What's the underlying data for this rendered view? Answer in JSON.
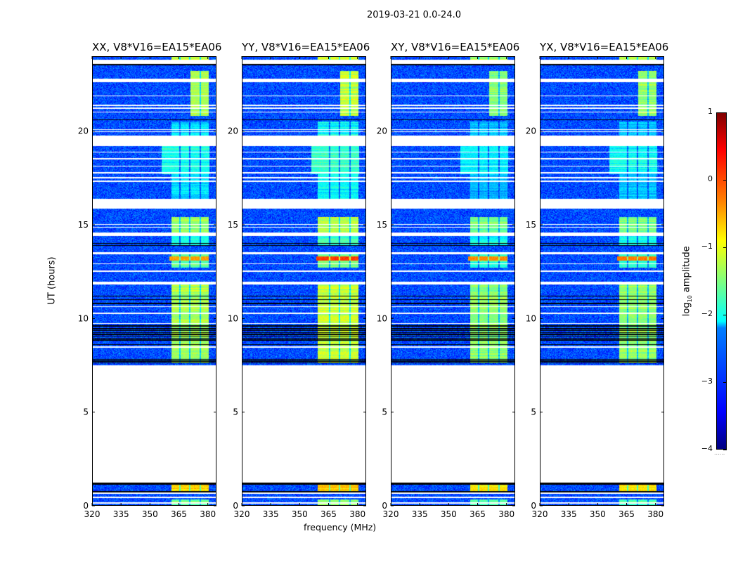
{
  "figure": {
    "suptitle": "2019-03-21 0.0-24.0",
    "xlabel": "frequency (MHz)",
    "ylabel": "UT (hours)",
    "colorbar_label_main": "log",
    "colorbar_label_sub": "10",
    "colorbar_label_rest": " amplitude",
    "colorbar_footer": "......"
  },
  "chart_data": {
    "type": "heatmap",
    "title": "2019-03-21 0.0-24.0",
    "xlabel": "frequency (MHz)",
    "ylabel": "UT (hours)",
    "xlim": [
      320,
      384.5
    ],
    "ylim": [
      0,
      24
    ],
    "xticks": [
      320,
      335,
      350,
      365,
      380
    ],
    "xtick_labels": [
      "320",
      "335",
      "350",
      "365",
      "380"
    ],
    "yticks": [
      0,
      5,
      10,
      15,
      20
    ],
    "ytick_labels": [
      "0",
      "5",
      "10",
      "15",
      "20"
    ],
    "colorbar": {
      "label": "log10 amplitude",
      "range": [
        -4,
        1
      ],
      "ticks": [
        1,
        0,
        -1,
        -2,
        -3,
        -4
      ],
      "tick_labels": [
        "1",
        "0",
        "−1",
        "−2",
        "−3",
        "−4"
      ],
      "colormap": "jet"
    },
    "panels": [
      {
        "title": "XX, V8*V16=EA15*EA06",
        "band_start_mhz": 361,
        "level_offset": 0.0,
        "red_row_level": -0.4
      },
      {
        "title": "YY, V8*V16=EA15*EA06",
        "band_start_mhz": 359.5,
        "level_offset": 0.15,
        "red_row_level": 0.1
      },
      {
        "title": "XY, V8*V16=EA15*EA06",
        "band_start_mhz": 361,
        "level_offset": -0.15,
        "red_row_level": -0.3
      },
      {
        "title": "YX, V8*V16=EA15*EA06",
        "band_start_mhz": 361,
        "level_offset": -0.1,
        "red_row_level": -0.2
      }
    ],
    "background_level": -3.0,
    "flagged_gaps_ut": [
      [
        1.25,
        7.5
      ],
      [
        15.85,
        16.4
      ],
      [
        19.2,
        19.75
      ],
      [
        22.6,
        22.8
      ],
      [
        23.6,
        23.82
      ],
      [
        14.4,
        14.6
      ],
      [
        13.43,
        13.55
      ],
      [
        0.12,
        0.18
      ],
      [
        0.42,
        0.5
      ],
      [
        0.62,
        0.7
      ],
      [
        11.82,
        11.98
      ],
      [
        12.5,
        12.58
      ],
      [
        12.9,
        12.95
      ],
      [
        17.3,
        17.36
      ],
      [
        17.48,
        17.55
      ],
      [
        17.75,
        17.82
      ],
      [
        18.1,
        18.16
      ],
      [
        18.5,
        18.56
      ],
      [
        18.85,
        18.9
      ],
      [
        21.0,
        21.05
      ],
      [
        21.2,
        21.25
      ],
      [
        21.35,
        21.4
      ],
      [
        21.85,
        21.9
      ],
      [
        20.05,
        20.1
      ],
      [
        19.95,
        19.99
      ],
      [
        14.85,
        14.9
      ],
      [
        15.0,
        15.04
      ],
      [
        8.45,
        8.5
      ],
      [
        10.6,
        10.65
      ],
      [
        10.25,
        10.3
      ],
      [
        9.7,
        9.75
      ]
    ],
    "flagged_lines_ut": [
      7.62,
      7.72,
      7.82,
      8.6,
      8.85,
      8.95,
      9.05,
      9.15,
      9.25,
      9.35,
      9.45,
      9.6,
      10.8,
      11.0,
      11.2,
      13.9,
      14.0,
      20.6,
      23.55,
      1.15,
      1.2,
      1.28,
      0.75
    ],
    "channel_dips_mhz": [
      365.6,
      370.8,
      376.0
    ],
    "rfi_bands": [
      {
        "ut": [
          7.6,
          11.8
        ],
        "mhz": [
          0,
          380.5
        ],
        "level": -1.3
      },
      {
        "ut": [
          12.7,
          13.45
        ],
        "mhz": [
          0,
          380.5
        ],
        "level": -1.7
      },
      {
        "ut": [
          13.9,
          14.4
        ],
        "mhz": [
          0,
          380.5
        ],
        "level": -1.9
      },
      {
        "ut": [
          14.6,
          15.4
        ],
        "mhz": [
          0,
          380.5
        ],
        "level": -1.4
      },
      {
        "ut": [
          0.0,
          0.35
        ],
        "mhz": [
          0,
          380.5
        ],
        "level": -1.6
      },
      {
        "ut": [
          0.78,
          1.12
        ],
        "mhz": [
          0,
          380.5
        ],
        "level": -0.7
      },
      {
        "ut": [
          20.8,
          23.2
        ],
        "mhz": [
          371,
          380.5
        ],
        "level": -1.3
      },
      {
        "ut": [
          23.82,
          24.0
        ],
        "mhz": [
          0,
          380.5
        ],
        "level": -1.2
      },
      {
        "ut": [
          17.7,
          19.2
        ],
        "mhz": [
          356,
          381
        ],
        "level": -2.0
      },
      {
        "ut": [
          19.75,
          20.5
        ],
        "mhz": [
          0,
          380.5
        ],
        "level": -2.3
      },
      {
        "ut": [
          16.4,
          17.7
        ],
        "mhz": [
          0,
          380.5
        ],
        "level": -2.3
      }
    ],
    "strong_row_ut": [
      13.1,
      13.3
    ]
  }
}
